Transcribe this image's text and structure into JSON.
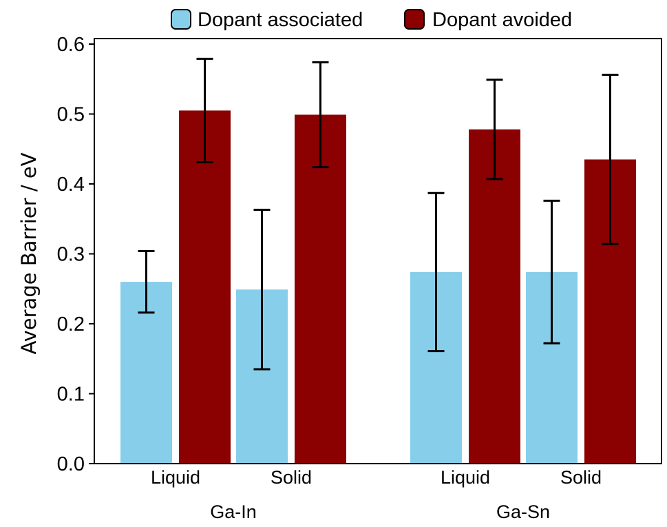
{
  "chart_data": {
    "type": "bar",
    "ylabel": "Average  Barrier  / eV",
    "ylim": [
      0,
      0.6
    ],
    "yticks": [
      "0.0",
      "0.1",
      "0.2",
      "0.3",
      "0.4",
      "0.5",
      "0.6"
    ],
    "grid": false,
    "legend_position": "top",
    "groups": [
      {
        "name": "Ga-In",
        "categories": [
          "Liquid",
          "Solid"
        ]
      },
      {
        "name": "Ga-Sn",
        "categories": [
          "Liquid",
          "Solid"
        ]
      }
    ],
    "series": [
      {
        "name": "Dopant associated",
        "color": "#87ceeb",
        "values": [
          0.26,
          0.249,
          0.274,
          0.274
        ],
        "errors": [
          0.044,
          0.114,
          0.113,
          0.102
        ]
      },
      {
        "name": "Dopant avoided",
        "color": "#8b0000",
        "values": [
          0.505,
          0.499,
          0.478,
          0.435
        ],
        "errors": [
          0.074,
          0.075,
          0.071,
          0.121
        ]
      }
    ]
  }
}
